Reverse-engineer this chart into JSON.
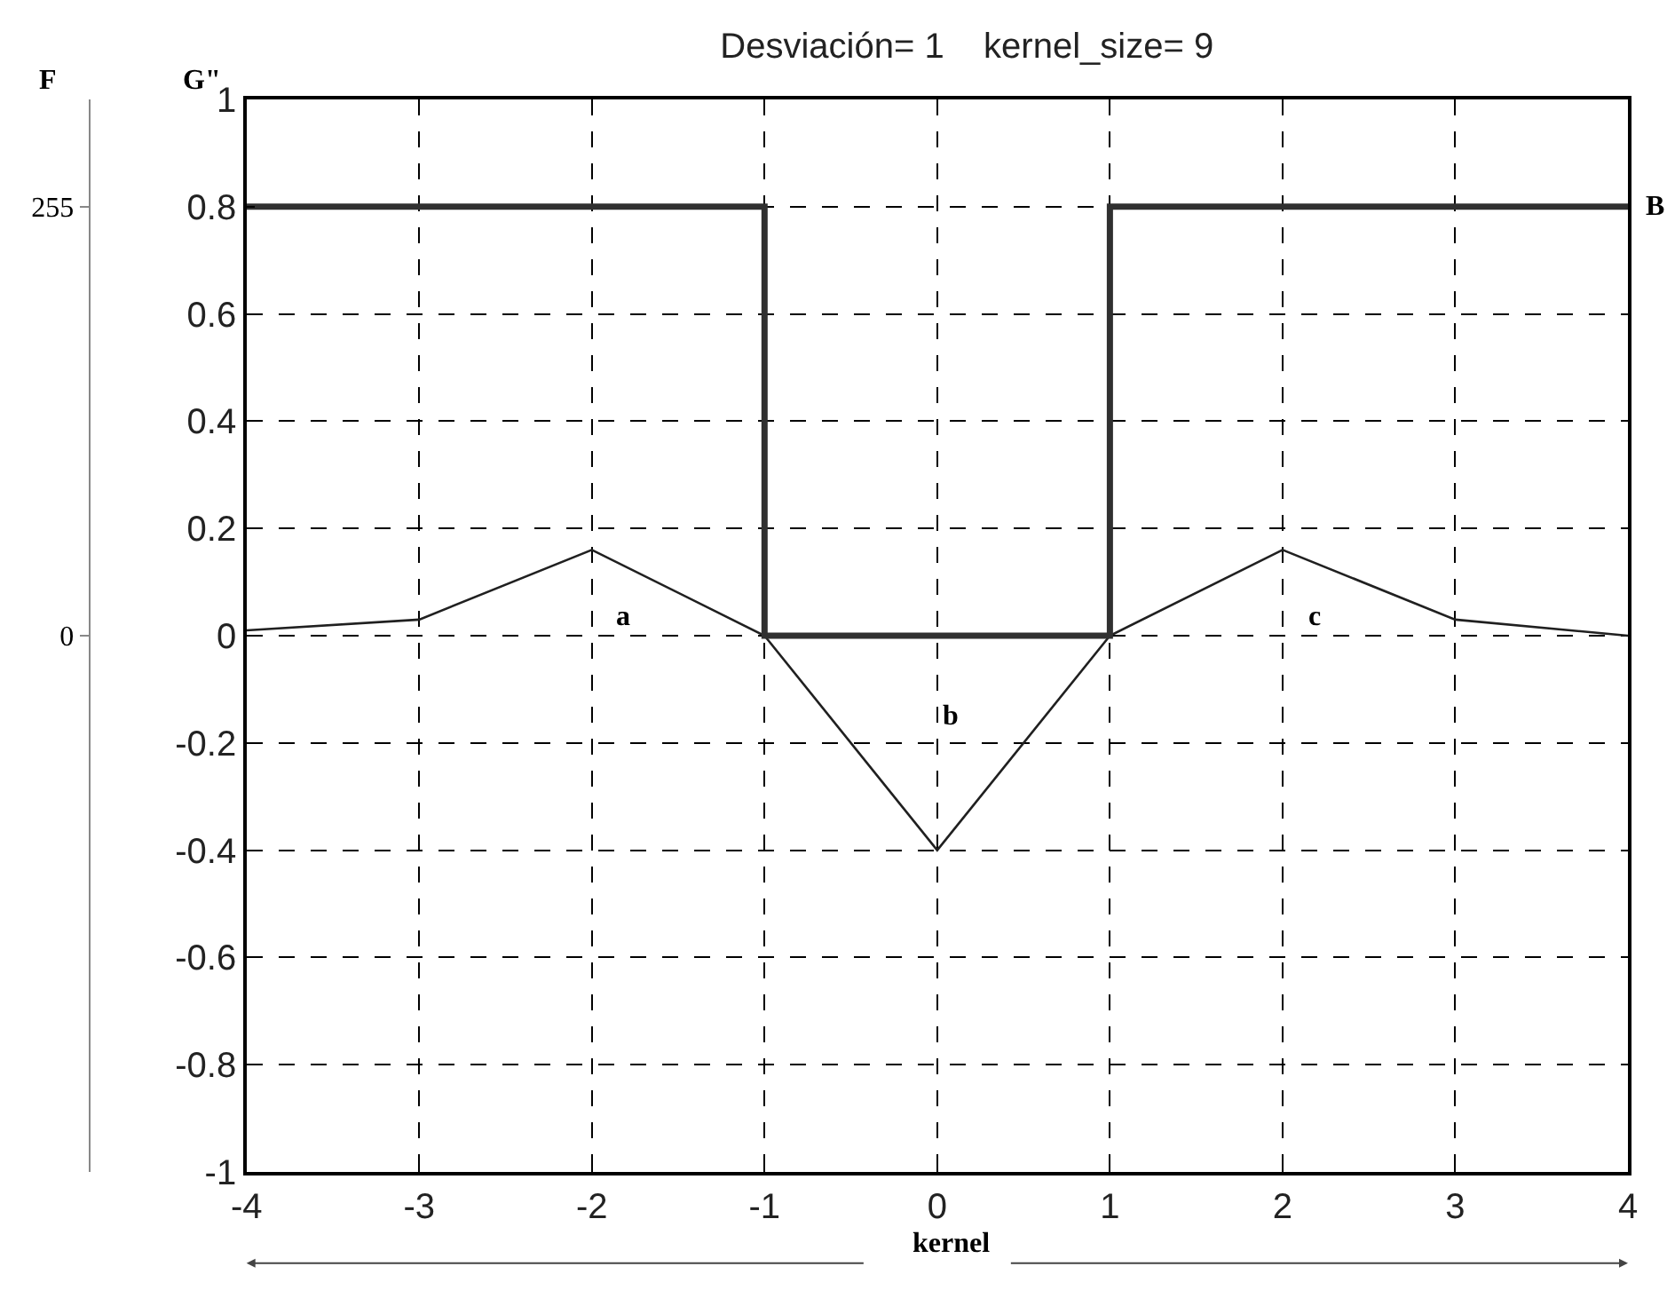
{
  "chart_data": {
    "type": "line",
    "title": "Desviación= 1    kernel_size= 9",
    "xlabel": "kernel",
    "ylabel": "G\"",
    "y2label": "F",
    "x": [
      -4,
      -3,
      -2,
      -1,
      0,
      1,
      2,
      3,
      4
    ],
    "series": [
      {
        "color": "#202020",
        "values": [
          0.01,
          0.03,
          0.16,
          0.0,
          -0.4,
          0.0,
          0.16,
          0.03,
          0.0
        ]
      },
      {
        "type": "step",
        "axis": "y2",
        "color": "#303030",
        "x": [
          -4,
          -1,
          1,
          4
        ],
        "values": [
          255,
          0,
          255,
          255
        ]
      }
    ],
    "xlim": [
      -4,
      4
    ],
    "xticks": [
      -4,
      -3,
      -2,
      -1,
      0,
      1,
      2,
      3,
      4
    ],
    "ylim": [
      -1,
      1
    ],
    "yticks": [
      -1,
      -0.8,
      -0.6,
      -0.4,
      -0.2,
      0,
      0.2,
      0.4,
      0.6,
      0.8,
      1
    ],
    "y2lim": [
      -318.75,
      318.75
    ],
    "y2ticks": [
      0,
      255
    ],
    "annotations": [
      {
        "text": "a",
        "x": -2,
        "y": 0.16
      },
      "b",
      {
        "text": "c",
        "x": 2,
        "y": 0.16
      },
      {
        "text": "B",
        "x": 4,
        "y": 0.8
      }
    ],
    "grid": true,
    "marker": "none",
    "line_style": "solid"
  }
}
